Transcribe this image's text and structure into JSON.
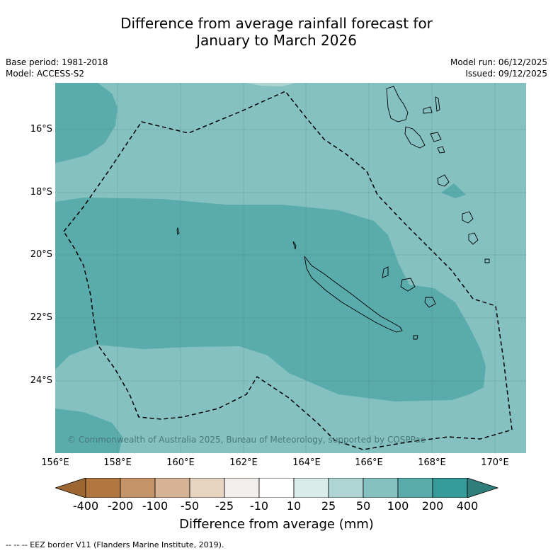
{
  "title": {
    "line1": "Difference from average rainfall forecast for",
    "line2": "January to March 2026"
  },
  "meta": {
    "base_period": "Base period: 1981-2018",
    "model": "Model: ACCESS-S2",
    "model_run": "Model run: 06/12/2025",
    "issued": "Issued: 09/12/2025"
  },
  "axes": {
    "lon_labels": [
      "156°E",
      "158°E",
      "160°E",
      "162°E",
      "164°E",
      "166°E",
      "168°E",
      "170°E"
    ],
    "lat_labels": [
      "16°S",
      "18°S",
      "20°S",
      "22°S",
      "24°S"
    ]
  },
  "colorbar": {
    "title": "Difference from average (mm)",
    "labels": [
      "-400",
      "-200",
      "-100",
      "-50",
      "-25",
      "-10",
      "10",
      "25",
      "50",
      "100",
      "200",
      "400"
    ],
    "colors": [
      "#9c6732",
      "#b07840",
      "#c49468",
      "#d6b394",
      "#e6d3c0",
      "#f1eeec",
      "#ffffff",
      "#d8ece9",
      "#aed5d4",
      "#84c1c0",
      "#5aacac",
      "#369a98",
      "#2f7e7c"
    ]
  },
  "map": {
    "background_color": "#84c1c0",
    "wet_color": "#5aacac",
    "copyright": "© Commonwealth of Australia 2025, Bureau of Meteorology, supported by COSPPac"
  },
  "footnote": "--  --  -- EEZ border V11 (Flanders Marine Institute, 2019)."
}
